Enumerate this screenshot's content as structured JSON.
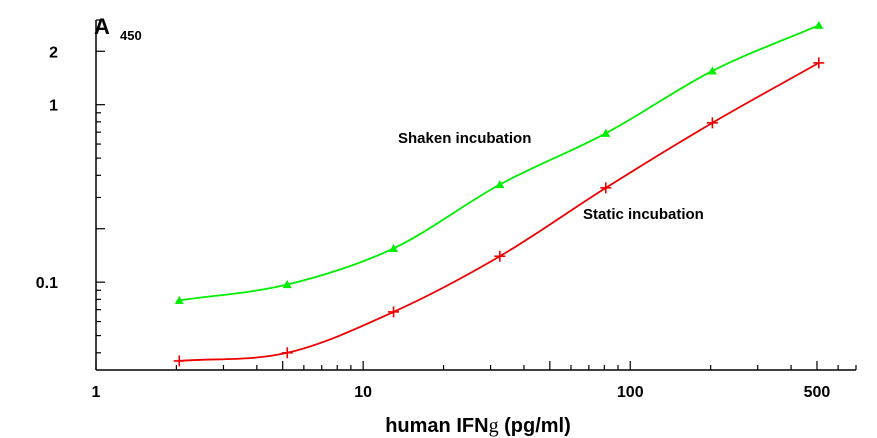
{
  "chart_data": {
    "type": "line",
    "x_scale": "log",
    "y_scale": "log",
    "xlim": [
      1,
      700
    ],
    "ylim": [
      0.032,
      3.0
    ],
    "x_ticks": [
      {
        "value": 1,
        "label": "1"
      },
      {
        "value": 10,
        "label": "10"
      },
      {
        "value": 100,
        "label": "100"
      },
      {
        "value": 500,
        "label": "500"
      }
    ],
    "y_ticks": [
      {
        "value": 0.1,
        "label": "0.1"
      },
      {
        "value": 1,
        "label": "1"
      },
      {
        "value": 2,
        "label": "2"
      }
    ],
    "ylabel": "A",
    "ylabel_sub": "450",
    "xlabel_pre": "human IFN",
    "xlabel_symbol": "g",
    "xlabel_post": " (pg/ml)",
    "grid": false,
    "series": [
      {
        "name": "Shaken incubation",
        "color": "#00ee00",
        "marker": "triangle",
        "x": [
          2.05,
          5.2,
          13,
          32.5,
          81,
          203,
          508
        ],
        "y": [
          0.079,
          0.097,
          0.155,
          0.355,
          0.69,
          1.55,
          2.8
        ]
      },
      {
        "name": "Static incubation",
        "color": "#ee0000",
        "marker": "plus",
        "x": [
          2.05,
          5.2,
          13,
          32.5,
          81,
          203,
          508
        ],
        "y": [
          0.036,
          0.04,
          0.068,
          0.14,
          0.34,
          0.79,
          1.72
        ]
      }
    ]
  }
}
